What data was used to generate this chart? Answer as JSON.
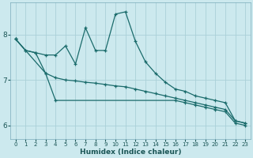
{
  "xlabel": "Humidex (Indice chaleur)",
  "xlim": [
    -0.5,
    23.5
  ],
  "ylim": [
    5.7,
    8.7
  ],
  "yticks": [
    6,
    7,
    8
  ],
  "xticks": [
    0,
    1,
    2,
    3,
    4,
    5,
    6,
    7,
    8,
    9,
    10,
    11,
    12,
    13,
    14,
    15,
    16,
    17,
    18,
    19,
    20,
    21,
    22,
    23
  ],
  "background_color": "#cce9ee",
  "grid_color": "#aad0d8",
  "line_color": "#1a6b6b",
  "line_upper": {
    "x": [
      0,
      1,
      2,
      3,
      4,
      5,
      6,
      7,
      8,
      9,
      10,
      11,
      12,
      13,
      14,
      15,
      16,
      17,
      18,
      19,
      20,
      21,
      22,
      23
    ],
    "y": [
      7.9,
      7.65,
      7.6,
      7.55,
      7.55,
      7.75,
      7.35,
      8.15,
      7.65,
      7.65,
      8.45,
      8.5,
      7.85,
      7.4,
      7.15,
      6.95,
      6.8,
      6.75,
      6.65,
      6.6,
      6.55,
      6.5,
      6.1,
      6.05
    ]
  },
  "line_mid": {
    "x": [
      0,
      1,
      2,
      3,
      4,
      5,
      6,
      7,
      8,
      9,
      10,
      11,
      12,
      13,
      14,
      15,
      16,
      17,
      18,
      19,
      20,
      21,
      22,
      23
    ],
    "y": [
      7.9,
      7.65,
      7.6,
      7.15,
      7.05,
      7.0,
      6.98,
      6.95,
      6.93,
      6.9,
      6.87,
      6.85,
      6.8,
      6.75,
      6.7,
      6.65,
      6.6,
      6.55,
      6.5,
      6.45,
      6.4,
      6.35,
      6.1,
      6.05
    ]
  },
  "line_lower": {
    "x": [
      0,
      3,
      4,
      16,
      17,
      18,
      19,
      20,
      21,
      22,
      23
    ],
    "y": [
      7.9,
      7.15,
      6.55,
      6.55,
      6.5,
      6.45,
      6.4,
      6.35,
      6.3,
      6.05,
      6.0
    ]
  }
}
